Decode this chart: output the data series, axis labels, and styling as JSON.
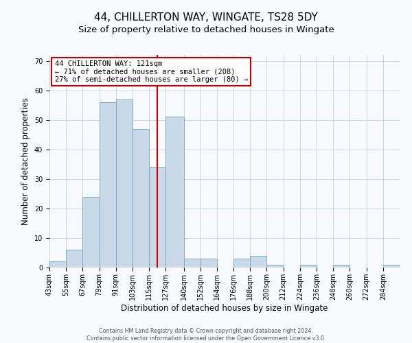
{
  "title": "44, CHILLERTON WAY, WINGATE, TS28 5DY",
  "subtitle": "Size of property relative to detached houses in Wingate",
  "xlabel": "Distribution of detached houses by size in Wingate",
  "ylabel": "Number of detached properties",
  "bin_labels": [
    "43sqm",
    "55sqm",
    "67sqm",
    "79sqm",
    "91sqm",
    "103sqm",
    "115sqm",
    "127sqm",
    "140sqm",
    "152sqm",
    "164sqm",
    "176sqm",
    "188sqm",
    "200sqm",
    "212sqm",
    "224sqm",
    "236sqm",
    "248sqm",
    "260sqm",
    "272sqm",
    "284sqm"
  ],
  "bin_edges": [
    43,
    55,
    67,
    79,
    91,
    103,
    115,
    127,
    140,
    152,
    164,
    176,
    188,
    200,
    212,
    224,
    236,
    248,
    260,
    272,
    284,
    296
  ],
  "bar_heights": [
    2,
    6,
    24,
    56,
    57,
    47,
    34,
    51,
    3,
    3,
    0,
    3,
    4,
    1,
    0,
    1,
    0,
    1,
    0,
    0,
    1
  ],
  "bar_color": "#c9d9e8",
  "bar_edgecolor": "#7aaac8",
  "property_size": 121,
  "vline_color": "#cc0000",
  "ylim": [
    0,
    72
  ],
  "yticks": [
    0,
    10,
    20,
    30,
    40,
    50,
    60,
    70
  ],
  "annotation_title": "44 CHILLERTON WAY: 121sqm",
  "annotation_line1": "← 71% of detached houses are smaller (208)",
  "annotation_line2": "27% of semi-detached houses are larger (80) →",
  "annotation_box_edgecolor": "#cc0000",
  "footer_line1": "Contains HM Land Registry data © Crown copyright and database right 2024.",
  "footer_line2": "Contains public sector information licensed under the Open Government Licence v3.0.",
  "bg_color": "#f7f9fc",
  "grid_color": "#c8d4e0",
  "title_fontsize": 11,
  "subtitle_fontsize": 9.5,
  "axis_label_fontsize": 8.5,
  "tick_fontsize": 7,
  "annotation_fontsize": 7.5
}
